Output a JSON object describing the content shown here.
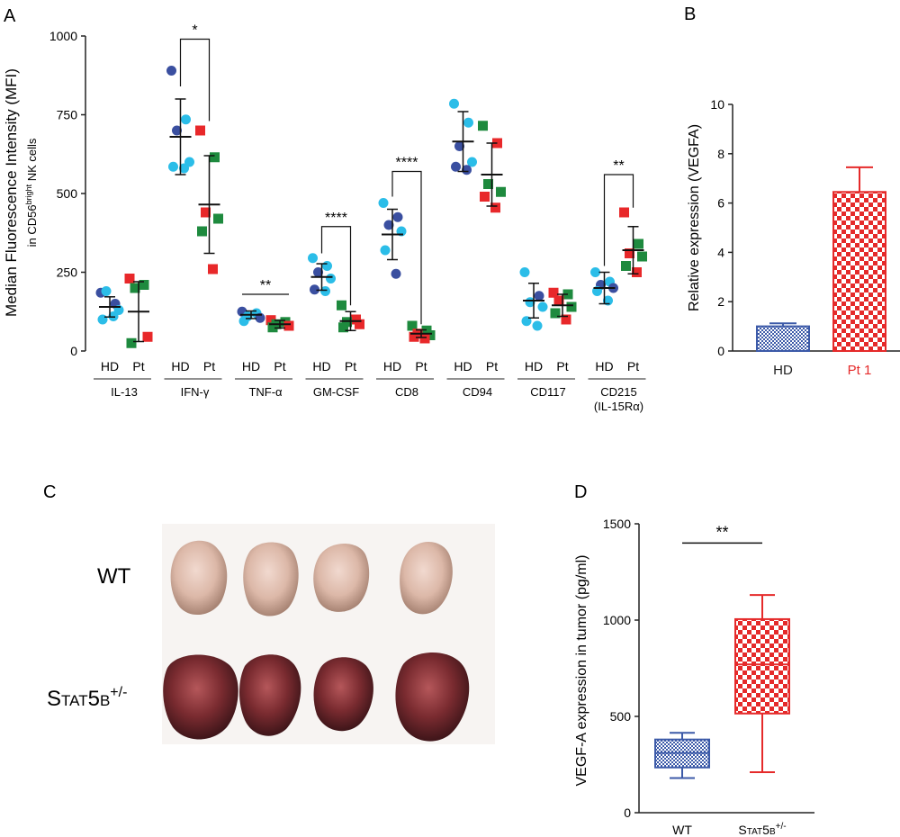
{
  "colors": {
    "hd_dark": "#3a4fa0",
    "hd_light": "#2bbde8",
    "pt_red": "#e8282a",
    "pt_green": "#1e8a3e",
    "blue_bar": "#3c5aa8",
    "red_bar": "#e52a2a",
    "axis": "#222222"
  },
  "panels": {
    "a": "A",
    "b": "B",
    "c": "C",
    "d": "D"
  },
  "chart_data": [
    {
      "panel": "A",
      "type": "scatter",
      "ylabel_main": "Median Fluorescence Intensity (MFI)",
      "ylabel_sub_prefix": "in CD56",
      "ylabel_sub_sup": "bright",
      "ylabel_sub_suffix": " NK cells",
      "ylim": [
        0,
        1000
      ],
      "yticks": [
        "0",
        "250",
        "500",
        "750",
        "1000"
      ],
      "group_labels": [
        "HD",
        "Pt"
      ],
      "categories": [
        "IL-13",
        "IFN-γ",
        "TNF-α",
        "GM-CSF",
        "CD8",
        "CD94",
        "CD117",
        "CD215"
      ],
      "category_sublabel": "(IL-15Rα)",
      "groups": [
        {
          "category": "IL-13",
          "group": "HD",
          "mean": 140,
          "sd": 32,
          "points": [
            {
              "v": 185,
              "c": "dark"
            },
            {
              "v": 150,
              "c": "dark"
            },
            {
              "v": 190,
              "c": "light"
            },
            {
              "v": 130,
              "c": "light"
            },
            {
              "v": 100,
              "c": "light"
            },
            {
              "v": 110,
              "c": "light"
            }
          ]
        },
        {
          "category": "IL-13",
          "group": "Pt",
          "mean": 125,
          "sd": 95,
          "points": [
            {
              "v": 230,
              "c": "red"
            },
            {
              "v": 210,
              "c": "green"
            },
            {
              "v": 200,
              "c": "green"
            },
            {
              "v": 45,
              "c": "red"
            },
            {
              "v": 25,
              "c": "green"
            }
          ]
        },
        {
          "category": "IFN-γ",
          "group": "HD",
          "mean": 680,
          "sd": 120,
          "points": [
            {
              "v": 890,
              "c": "dark"
            },
            {
              "v": 735,
              "c": "light"
            },
            {
              "v": 700,
              "c": "dark"
            },
            {
              "v": 600,
              "c": "light"
            },
            {
              "v": 585,
              "c": "light"
            },
            {
              "v": 580,
              "c": "light"
            }
          ]
        },
        {
          "category": "IFN-γ",
          "group": "Pt",
          "mean": 465,
          "sd": 155,
          "points": [
            {
              "v": 700,
              "c": "red"
            },
            {
              "v": 615,
              "c": "green"
            },
            {
              "v": 440,
              "c": "red"
            },
            {
              "v": 420,
              "c": "green"
            },
            {
              "v": 380,
              "c": "green"
            },
            {
              "v": 260,
              "c": "red"
            }
          ]
        },
        {
          "category": "TNF-α",
          "group": "HD",
          "mean": 115,
          "sd": 12,
          "points": [
            {
              "v": 125,
              "c": "dark"
            },
            {
              "v": 120,
              "c": "light"
            },
            {
              "v": 110,
              "c": "light"
            },
            {
              "v": 105,
              "c": "dark"
            },
            {
              "v": 95,
              "c": "light"
            }
          ]
        },
        {
          "category": "TNF-α",
          "group": "Pt",
          "mean": 85,
          "sd": 12,
          "points": [
            {
              "v": 98,
              "c": "red"
            },
            {
              "v": 92,
              "c": "green"
            },
            {
              "v": 85,
              "c": "green"
            },
            {
              "v": 80,
              "c": "red"
            },
            {
              "v": 75,
              "c": "green"
            }
          ]
        },
        {
          "category": "GM-CSF",
          "group": "HD",
          "mean": 235,
          "sd": 42,
          "points": [
            {
              "v": 295,
              "c": "light"
            },
            {
              "v": 270,
              "c": "light"
            },
            {
              "v": 250,
              "c": "dark"
            },
            {
              "v": 230,
              "c": "light"
            },
            {
              "v": 195,
              "c": "dark"
            },
            {
              "v": 190,
              "c": "light"
            }
          ]
        },
        {
          "category": "GM-CSF",
          "group": "Pt",
          "mean": 95,
          "sd": 30,
          "points": [
            {
              "v": 145,
              "c": "green"
            },
            {
              "v": 100,
              "c": "red"
            },
            {
              "v": 92,
              "c": "green"
            },
            {
              "v": 85,
              "c": "red"
            },
            {
              "v": 75,
              "c": "green"
            }
          ]
        },
        {
          "category": "CD8",
          "group": "HD",
          "mean": 370,
          "sd": 80,
          "points": [
            {
              "v": 470,
              "c": "light"
            },
            {
              "v": 425,
              "c": "dark"
            },
            {
              "v": 400,
              "c": "dark"
            },
            {
              "v": 380,
              "c": "light"
            },
            {
              "v": 320,
              "c": "light"
            },
            {
              "v": 245,
              "c": "dark"
            }
          ]
        },
        {
          "category": "CD8",
          "group": "Pt",
          "mean": 55,
          "sd": 12,
          "points": [
            {
              "v": 80,
              "c": "green"
            },
            {
              "v": 65,
              "c": "green"
            },
            {
              "v": 55,
              "c": "red"
            },
            {
              "v": 50,
              "c": "green"
            },
            {
              "v": 45,
              "c": "red"
            },
            {
              "v": 40,
              "c": "red"
            }
          ]
        },
        {
          "category": "CD94",
          "group": "HD",
          "mean": 665,
          "sd": 95,
          "points": [
            {
              "v": 785,
              "c": "light"
            },
            {
              "v": 725,
              "c": "light"
            },
            {
              "v": 650,
              "c": "dark"
            },
            {
              "v": 600,
              "c": "light"
            },
            {
              "v": 585,
              "c": "dark"
            },
            {
              "v": 575,
              "c": "dark"
            }
          ]
        },
        {
          "category": "CD94",
          "group": "Pt",
          "mean": 560,
          "sd": 100,
          "points": [
            {
              "v": 715,
              "c": "green"
            },
            {
              "v": 660,
              "c": "red"
            },
            {
              "v": 530,
              "c": "green"
            },
            {
              "v": 505,
              "c": "green"
            },
            {
              "v": 490,
              "c": "red"
            },
            {
              "v": 455,
              "c": "red"
            }
          ]
        },
        {
          "category": "CD117",
          "group": "HD",
          "mean": 160,
          "sd": 55,
          "points": [
            {
              "v": 250,
              "c": "light"
            },
            {
              "v": 175,
              "c": "dark"
            },
            {
              "v": 155,
              "c": "light"
            },
            {
              "v": 140,
              "c": "light"
            },
            {
              "v": 95,
              "c": "light"
            },
            {
              "v": 80,
              "c": "light"
            }
          ]
        },
        {
          "category": "CD117",
          "group": "Pt",
          "mean": 145,
          "sd": 35,
          "points": [
            {
              "v": 185,
              "c": "red"
            },
            {
              "v": 180,
              "c": "green"
            },
            {
              "v": 160,
              "c": "red"
            },
            {
              "v": 140,
              "c": "green"
            },
            {
              "v": 120,
              "c": "green"
            },
            {
              "v": 100,
              "c": "red"
            }
          ]
        },
        {
          "category": "CD215",
          "group": "HD",
          "mean": 200,
          "sd": 50,
          "points": [
            {
              "v": 250,
              "c": "light"
            },
            {
              "v": 220,
              "c": "light"
            },
            {
              "v": 210,
              "c": "dark"
            },
            {
              "v": 200,
              "c": "dark"
            },
            {
              "v": 190,
              "c": "light"
            },
            {
              "v": 160,
              "c": "light"
            }
          ]
        },
        {
          "category": "CD215",
          "group": "Pt",
          "mean": 320,
          "sd": 75,
          "points": [
            {
              "v": 440,
              "c": "red"
            },
            {
              "v": 340,
              "c": "green"
            },
            {
              "v": 310,
              "c": "red"
            },
            {
              "v": 300,
              "c": "green"
            },
            {
              "v": 270,
              "c": "green"
            },
            {
              "v": 250,
              "c": "red"
            }
          ]
        }
      ],
      "significance": [
        {
          "category": "IFN-γ",
          "label": "*",
          "y": 990,
          "style": "bracket",
          "drop_hd": 840,
          "drop_pt": 730
        },
        {
          "category": "TNF-α",
          "label": "**",
          "y": 180,
          "style": "line"
        },
        {
          "category": "GM-CSF",
          "label": "****",
          "y": 395,
          "style": "bracket",
          "drop_hd": 310,
          "drop_pt": 145
        },
        {
          "category": "CD8",
          "label": "****",
          "y": 570,
          "style": "bracket",
          "drop_hd": 490,
          "drop_pt": 85
        },
        {
          "category": "CD215",
          "label": "**",
          "y": 560,
          "style": "bracket",
          "drop_hd": 270,
          "drop_pt": 455
        }
      ]
    },
    {
      "panel": "B",
      "type": "bar",
      "ylabel": "Relative expression (VEGFA)",
      "ylim": [
        0,
        10
      ],
      "yticks": [
        "0",
        "2",
        "4",
        "6",
        "8",
        "10"
      ],
      "categories": [
        "HD",
        "Pt 1"
      ],
      "values": [
        1.0,
        6.45
      ],
      "errors": [
        0.12,
        1.0
      ]
    },
    {
      "panel": "D",
      "type": "box",
      "ylabel": "VEGF-A expression in tumor (pg/ml)",
      "ylim": [
        0,
        1500
      ],
      "yticks": [
        "0",
        "500",
        "1000",
        "1500"
      ],
      "categories": [
        "WT",
        "Stat5b"
      ],
      "category_sup": [
        "",
        "+/-"
      ],
      "boxes": [
        {
          "min": 180,
          "q1": 235,
          "median": 310,
          "q3": 380,
          "max": 415
        },
        {
          "min": 210,
          "q1": 515,
          "median": 770,
          "q3": 1005,
          "max": 1130
        }
      ],
      "significance": {
        "label": "**",
        "y": 1400
      }
    }
  ],
  "photo": {
    "panel": "C",
    "row_labels": [
      "WT",
      "Stat5b"
    ],
    "row_label_sup": "+/-"
  }
}
